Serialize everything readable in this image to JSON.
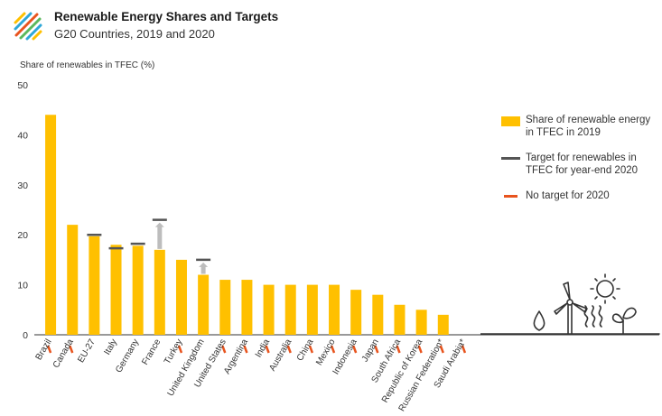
{
  "header": {
    "title": "Renewable Energy Shares and Targets",
    "subtitle": "G20 Countries, 2019 and 2020"
  },
  "colors": {
    "share_bar": "#ffc000",
    "target_line": "#555555",
    "no_target": "#e8541e",
    "arrow": "#bdbdbd"
  },
  "legend": {
    "share": "Share of renewable energy in TFEC in 2019",
    "target": "Target for renewables in TFEC for year-end 2020",
    "no_target": "No target for 2020"
  },
  "chart_data": {
    "type": "bar",
    "title": "Renewable Energy Shares and Targets",
    "subtitle": "G20 Countries, 2019 and 2020",
    "ylabel": "Share of renewables in TFEC (%)",
    "xlabel": "",
    "ylim": [
      0,
      50
    ],
    "yticks": [
      0,
      10,
      20,
      30,
      40,
      50
    ],
    "grid": false,
    "legend_position": "right",
    "categories": [
      "Brazil",
      "Canada",
      "EU-27",
      "Italy",
      "Germany",
      "France",
      "Turkey",
      "United Kingdom",
      "United States",
      "Argentina",
      "India",
      "Australia",
      "China",
      "Mexico",
      "Indonesia",
      "Japan",
      "South Africa",
      "Republic of Korea",
      "Russian Federation*",
      "Saudi Arabia*"
    ],
    "series": [
      {
        "name": "Share of renewable energy in TFEC in 2019",
        "values": [
          44,
          22,
          19.7,
          18,
          17.8,
          17,
          15,
          12,
          11,
          11,
          10,
          10,
          10,
          10,
          9,
          8,
          6,
          5,
          4,
          0
        ]
      },
      {
        "name": "Target for renewables in TFEC for year-end 2020",
        "values": [
          null,
          null,
          20,
          17.3,
          18.2,
          23,
          null,
          15,
          null,
          null,
          null,
          null,
          null,
          null,
          null,
          null,
          null,
          null,
          null,
          null
        ]
      }
    ],
    "no_target_2020": [
      "Brazil",
      "Canada",
      "Turkey",
      "United States",
      "Argentina",
      "India",
      "Australia",
      "China",
      "Mexico",
      "Indonesia",
      "Japan",
      "South Africa",
      "Republic of Korea",
      "Russian Federation*",
      "Saudi Arabia*"
    ]
  }
}
